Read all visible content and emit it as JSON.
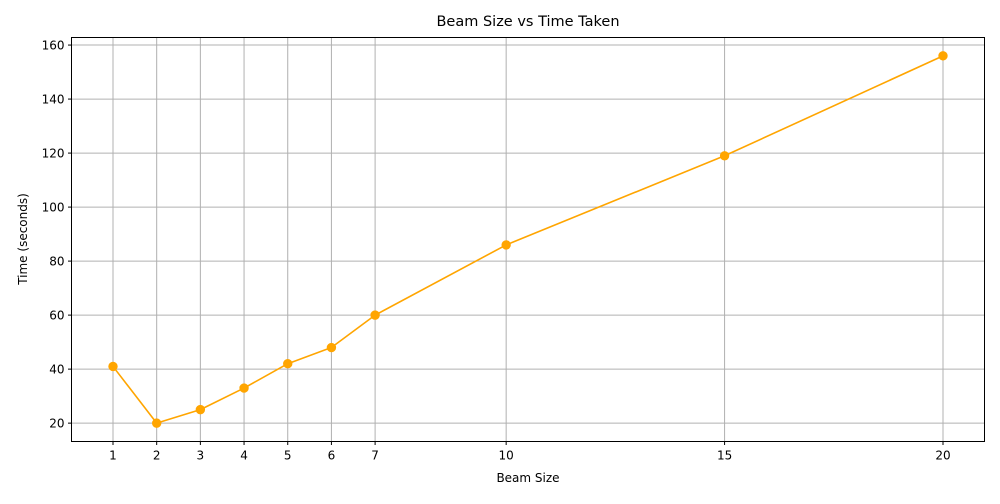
{
  "chart_data": {
    "type": "line",
    "title": "Beam Size vs Time Taken",
    "xlabel": "Beam Size",
    "ylabel": "Time (seconds)",
    "x": [
      1,
      2,
      3,
      4,
      5,
      6,
      7,
      10,
      15,
      20
    ],
    "series": [
      {
        "values": [
          41,
          20,
          25,
          33,
          42,
          48,
          60,
          86,
          119,
          156
        ],
        "color": "#FFA500",
        "marker": "circle"
      }
    ],
    "xticks": [
      1,
      2,
      3,
      4,
      5,
      6,
      7,
      10,
      15,
      20
    ],
    "yticks": [
      20,
      40,
      60,
      80,
      100,
      120,
      140,
      160
    ],
    "xlim": [
      0.05,
      20.95
    ],
    "ylim": [
      13.2,
      162.8
    ],
    "grid": true
  }
}
